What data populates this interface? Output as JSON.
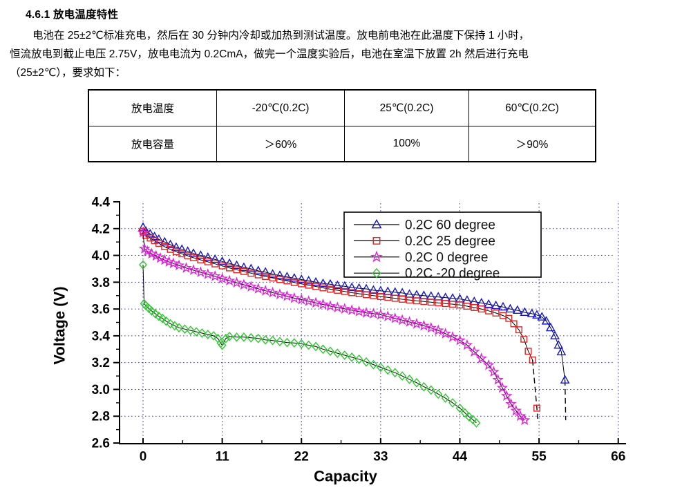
{
  "document": {
    "heading": "4.6.1 放电温度特性",
    "paragraph_lines": [
      "电池在 25±2℃标准充电，然后在 30 分钟内冷却或加热到测试温度。放电前电池在此温度下保持 1 小时，",
      "恒流放电到截止电压 2.75V，放电电流为 0.2CmA，做完一个温度实验后，电池在室温下放置 2h 然后进行充电",
      "（25±2℃），要求如下："
    ],
    "table": {
      "rows": [
        [
          "放电温度",
          "-20℃(0.2C)",
          "25℃(0.2C)",
          "60℃(0.2C)"
        ],
        [
          "放电容量",
          "＞60%",
          "100%",
          "＞90%"
        ]
      ]
    }
  },
  "chart_data": {
    "type": "line",
    "title": "",
    "xlabel": "Capacity",
    "ylabel": "Voltage (V)",
    "xlim": [
      -3.4,
      66.9
    ],
    "ylim": [
      2.6,
      4.4
    ],
    "x_ticks": [
      0,
      11,
      22,
      33,
      44,
      55,
      66
    ],
    "x_tick_labels": [
      "0",
      "11",
      "22",
      "33",
      "44",
      "55",
      "66"
    ],
    "y_ticks": [
      2.6,
      2.8,
      3.0,
      3.2,
      3.4,
      3.6,
      3.8,
      4.0,
      4.2,
      4.4
    ],
    "y_tick_labels": [
      "2.6",
      "2.8",
      "3.0",
      "3.2",
      "3.4",
      "3.6",
      "3.8",
      "4.0",
      "4.2",
      "4.4"
    ],
    "grid_x": [
      0,
      11,
      22,
      33,
      44,
      55,
      66
    ],
    "grid_y": [
      2.8,
      3.0,
      3.2,
      3.4,
      3.6,
      3.8,
      4.0,
      4.2
    ],
    "grid_style": "blue dotted",
    "legend_position": "upper center inside",
    "colors": {
      "grid": "#3a3ac8",
      "axis": "#000000",
      "line": "#000000",
      "legend_border": "#000000"
    },
    "series": [
      {
        "id": "60-degree",
        "name": "0.2C  60 degree",
        "marker": "triangle",
        "color": "#1515cf",
        "dash_from_x": 58.6,
        "line_tail": [
          [
            58.7,
            2.77
          ]
        ],
        "points": [
          [
            0,
            4.21
          ],
          [
            0.4,
            4.18
          ],
          [
            1,
            4.16
          ],
          [
            1.6,
            4.14
          ],
          [
            2.2,
            4.12
          ],
          [
            3,
            4.1
          ],
          [
            3.8,
            4.08
          ],
          [
            4.6,
            4.06
          ],
          [
            5.4,
            4.045
          ],
          [
            6.2,
            4.03
          ],
          [
            7,
            4.015
          ],
          [
            8,
            4.0
          ],
          [
            9,
            3.985
          ],
          [
            10,
            3.97
          ],
          [
            11,
            3.955
          ],
          [
            12,
            3.94
          ],
          [
            13,
            3.925
          ],
          [
            14,
            3.91
          ],
          [
            15,
            3.9
          ],
          [
            16,
            3.885
          ],
          [
            17,
            3.875
          ],
          [
            18,
            3.86
          ],
          [
            19,
            3.85
          ],
          [
            20,
            3.84
          ],
          [
            21,
            3.83
          ],
          [
            22,
            3.82
          ],
          [
            23,
            3.81
          ],
          [
            24,
            3.8
          ],
          [
            25,
            3.79
          ],
          [
            26,
            3.785
          ],
          [
            27,
            3.775
          ],
          [
            28,
            3.77
          ],
          [
            29,
            3.76
          ],
          [
            30,
            3.755
          ],
          [
            31,
            3.75
          ],
          [
            32,
            3.74
          ],
          [
            33,
            3.735
          ],
          [
            34,
            3.73
          ],
          [
            35,
            3.725
          ],
          [
            36,
            3.72
          ],
          [
            37,
            3.71
          ],
          [
            38,
            3.705
          ],
          [
            39,
            3.7
          ],
          [
            40,
            3.695
          ],
          [
            41,
            3.69
          ],
          [
            42,
            3.685
          ],
          [
            43,
            3.68
          ],
          [
            44,
            3.675
          ],
          [
            45,
            3.665
          ],
          [
            46,
            3.655
          ],
          [
            47,
            3.645
          ],
          [
            48,
            3.635
          ],
          [
            49,
            3.625
          ],
          [
            50,
            3.615
          ],
          [
            51,
            3.6
          ],
          [
            52,
            3.59
          ],
          [
            53,
            3.575
          ],
          [
            54,
            3.565
          ],
          [
            54.7,
            3.555
          ],
          [
            55.4,
            3.54
          ],
          [
            56,
            3.51
          ],
          [
            56.6,
            3.46
          ],
          [
            57.2,
            3.4
          ],
          [
            57.7,
            3.33
          ],
          [
            58.1,
            3.28
          ],
          [
            58.6,
            3.07
          ]
        ]
      },
      {
        "id": "25-degree",
        "name": "0.2C  25 degree",
        "marker": "square",
        "color": "#e32222",
        "dash_from_x": 54.1,
        "line_tail": [
          [
            54.8,
            2.78
          ]
        ],
        "points": [
          [
            0,
            4.18
          ],
          [
            0.4,
            4.15
          ],
          [
            1,
            4.13
          ],
          [
            1.6,
            4.11
          ],
          [
            2.2,
            4.09
          ],
          [
            3,
            4.065
          ],
          [
            3.8,
            4.045
          ],
          [
            4.6,
            4.028
          ],
          [
            5.4,
            4.012
          ],
          [
            6.2,
            3.997
          ],
          [
            7,
            3.983
          ],
          [
            8,
            3.967
          ],
          [
            9,
            3.952
          ],
          [
            10,
            3.937
          ],
          [
            11,
            3.922
          ],
          [
            12,
            3.907
          ],
          [
            13,
            3.893
          ],
          [
            14,
            3.88
          ],
          [
            15,
            3.867
          ],
          [
            16,
            3.855
          ],
          [
            17,
            3.843
          ],
          [
            18,
            3.832
          ],
          [
            19,
            3.82
          ],
          [
            20,
            3.81
          ],
          [
            21,
            3.798
          ],
          [
            22,
            3.788
          ],
          [
            23,
            3.778
          ],
          [
            24,
            3.768
          ],
          [
            25,
            3.758
          ],
          [
            26,
            3.748
          ],
          [
            27,
            3.74
          ],
          [
            28,
            3.731
          ],
          [
            29,
            3.722
          ],
          [
            30,
            3.714
          ],
          [
            31,
            3.707
          ],
          [
            32,
            3.7
          ],
          [
            33,
            3.693
          ],
          [
            34,
            3.687
          ],
          [
            35,
            3.68
          ],
          [
            36,
            3.673
          ],
          [
            37,
            3.667
          ],
          [
            38,
            3.661
          ],
          [
            39,
            3.656
          ],
          [
            40,
            3.651
          ],
          [
            41,
            3.646
          ],
          [
            42,
            3.641
          ],
          [
            43,
            3.636
          ],
          [
            44,
            3.63
          ],
          [
            45,
            3.621
          ],
          [
            46,
            3.611
          ],
          [
            47,
            3.6
          ],
          [
            48,
            3.586
          ],
          [
            49,
            3.57
          ],
          [
            50,
            3.551
          ],
          [
            50.8,
            3.53
          ],
          [
            51.5,
            3.49
          ],
          [
            52.2,
            3.445
          ],
          [
            52.9,
            3.375
          ],
          [
            53.5,
            3.285
          ],
          [
            54.1,
            3.22
          ],
          [
            54.7,
            2.86
          ]
        ]
      },
      {
        "id": "0-degree",
        "name": "0.2C  0  degree",
        "marker": "star",
        "color": "#e020d8",
        "points": [
          [
            0,
            4.17
          ],
          [
            0.2,
            4.05
          ],
          [
            0.6,
            4.03
          ],
          [
            1.2,
            4.012
          ],
          [
            1.8,
            3.996
          ],
          [
            2.4,
            3.98
          ],
          [
            3,
            3.965
          ],
          [
            3.6,
            3.952
          ],
          [
            4.2,
            3.94
          ],
          [
            5,
            3.925
          ],
          [
            6,
            3.906
          ],
          [
            7,
            3.89
          ],
          [
            8,
            3.874
          ],
          [
            9,
            3.859
          ],
          [
            10,
            3.844
          ],
          [
            11,
            3.827
          ],
          [
            12,
            3.811
          ],
          [
            13,
            3.796
          ],
          [
            14,
            3.781
          ],
          [
            15,
            3.766
          ],
          [
            16,
            3.751
          ],
          [
            17,
            3.736
          ],
          [
            18,
            3.722
          ],
          [
            19,
            3.709
          ],
          [
            20,
            3.696
          ],
          [
            21,
            3.681
          ],
          [
            22,
            3.67
          ],
          [
            23,
            3.658
          ],
          [
            24,
            3.646
          ],
          [
            25,
            3.634
          ],
          [
            26,
            3.622
          ],
          [
            27,
            3.611
          ],
          [
            28,
            3.601
          ],
          [
            29,
            3.591
          ],
          [
            30,
            3.581
          ],
          [
            31,
            3.571
          ],
          [
            32,
            3.565
          ],
          [
            33,
            3.557
          ],
          [
            34,
            3.545
          ],
          [
            35,
            3.53
          ],
          [
            36,
            3.517
          ],
          [
            37,
            3.503
          ],
          [
            38,
            3.489
          ],
          [
            39,
            3.475
          ],
          [
            40,
            3.459
          ],
          [
            41,
            3.44
          ],
          [
            42,
            3.416
          ],
          [
            43,
            3.391
          ],
          [
            44,
            3.366
          ],
          [
            45,
            3.331
          ],
          [
            46,
            3.281
          ],
          [
            47,
            3.231
          ],
          [
            48,
            3.181
          ],
          [
            48.7,
            3.131
          ],
          [
            49.3,
            3.071
          ],
          [
            49.9,
            3.011
          ],
          [
            50.5,
            2.951
          ],
          [
            51.1,
            2.891
          ],
          [
            51.8,
            2.841
          ],
          [
            52.4,
            2.801
          ],
          [
            53,
            2.77
          ]
        ]
      },
      {
        "id": "minus20-degree",
        "name": "0.2C -20 degree",
        "marker": "diamond",
        "color": "#2ec82e",
        "points": [
          [
            0,
            3.93
          ],
          [
            0.15,
            3.64
          ],
          [
            0.4,
            3.625
          ],
          [
            0.8,
            3.605
          ],
          [
            1.2,
            3.585
          ],
          [
            1.7,
            3.565
          ],
          [
            2.2,
            3.545
          ],
          [
            2.7,
            3.53
          ],
          [
            3.2,
            3.51
          ],
          [
            3.8,
            3.49
          ],
          [
            4.4,
            3.475
          ],
          [
            5,
            3.46
          ],
          [
            5.8,
            3.45
          ],
          [
            6.6,
            3.44
          ],
          [
            7.4,
            3.43
          ],
          [
            8.2,
            3.42
          ],
          [
            9,
            3.41
          ],
          [
            9.8,
            3.4
          ],
          [
            10.4,
            3.38
          ],
          [
            10.8,
            3.345
          ],
          [
            11,
            3.33
          ],
          [
            11.5,
            3.38
          ],
          [
            12,
            3.395
          ],
          [
            13,
            3.39
          ],
          [
            14,
            3.39
          ],
          [
            15,
            3.385
          ],
          [
            16,
            3.38
          ],
          [
            17,
            3.37
          ],
          [
            18,
            3.365
          ],
          [
            19,
            3.357
          ],
          [
            20,
            3.35
          ],
          [
            21,
            3.347
          ],
          [
            22,
            3.34
          ],
          [
            23,
            3.33
          ],
          [
            24,
            3.32
          ],
          [
            25,
            3.3
          ],
          [
            26,
            3.285
          ],
          [
            27,
            3.27
          ],
          [
            28,
            3.255
          ],
          [
            29,
            3.24
          ],
          [
            30,
            3.225
          ],
          [
            31,
            3.205
          ],
          [
            32,
            3.185
          ],
          [
            33,
            3.165
          ],
          [
            34,
            3.145
          ],
          [
            35,
            3.125
          ],
          [
            36,
            3.1
          ],
          [
            37,
            3.075
          ],
          [
            38,
            3.05
          ],
          [
            39,
            3.02
          ],
          [
            40,
            2.995
          ],
          [
            41,
            2.965
          ],
          [
            42,
            2.935
          ],
          [
            43,
            2.9
          ],
          [
            44,
            2.86
          ],
          [
            44.7,
            2.825
          ],
          [
            45.3,
            2.795
          ],
          [
            45.8,
            2.775
          ],
          [
            46.3,
            2.75
          ]
        ]
      }
    ]
  }
}
